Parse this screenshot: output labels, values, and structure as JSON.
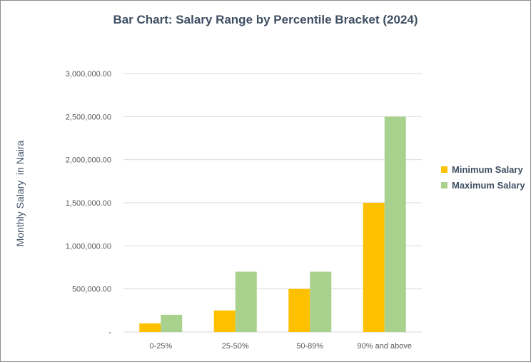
{
  "chart_data": {
    "type": "bar",
    "title": "Bar Chart: Salary Range by Percentile Bracket (2024)",
    "xlabel": "",
    "ylabel": "Monthly Salary  in Naira",
    "categories": [
      "0-25%",
      "25-50%",
      "50-89%",
      "90% and above"
    ],
    "series": [
      {
        "name": "Minimum Salary",
        "color": "#ffc000",
        "values": [
          100000,
          250000,
          500000,
          1500000
        ]
      },
      {
        "name": "Maximum Salary",
        "color": "#a9d18e",
        "values": [
          200000,
          700000,
          700000,
          2500000
        ]
      }
    ],
    "ylim": [
      0,
      3000000
    ],
    "yticks": [
      0,
      500000,
      1000000,
      1500000,
      2000000,
      2500000,
      3000000
    ],
    "ytick_labels": [
      "-",
      "500,000.00",
      "1,000,000.00",
      "1,500,000.00",
      "2,000,000.00",
      "2,500,000.00",
      "3,000,000.00"
    ],
    "grid": true,
    "legend_position": "right"
  }
}
